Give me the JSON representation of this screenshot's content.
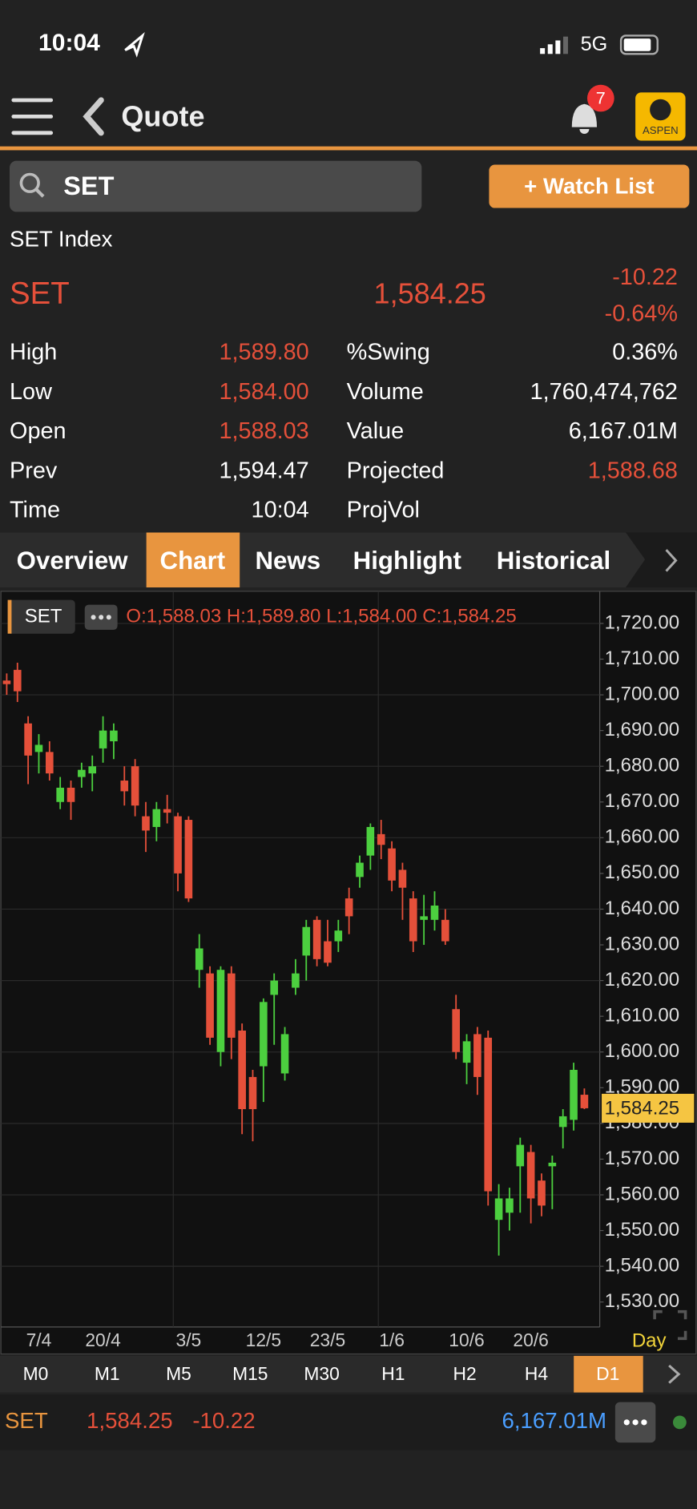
{
  "status_bar": {
    "time": "10:04",
    "network": "5G"
  },
  "header": {
    "title": "Quote",
    "notifications": "7",
    "logo": "ASPEN"
  },
  "search": {
    "query": "SET",
    "button": "+ Watch List"
  },
  "quote": {
    "name": "SET Index",
    "symbol": "SET",
    "last": "1,584.25",
    "change": "-10.22",
    "change_pct": "-0.64%",
    "left": [
      {
        "label": "High",
        "value": "1,589.80"
      },
      {
        "label": "Low",
        "value": "1,584.00"
      },
      {
        "label": "Open",
        "value": "1,588.03"
      },
      {
        "label": "Prev",
        "value": "1,594.47"
      },
      {
        "label": "Time",
        "value": "10:04"
      }
    ],
    "right": [
      {
        "label": "%Swing",
        "value": "0.36%"
      },
      {
        "label": "Volume",
        "value": "1,760,474,762"
      },
      {
        "label": "Value",
        "value": "6,167.01M"
      },
      {
        "label": "Projected",
        "value": "1,588.68"
      },
      {
        "label": "ProjVol"
      }
    ]
  },
  "tabs": [
    "Overview",
    "Chart",
    "News",
    "Highlight",
    "Historical"
  ],
  "chart_data": {
    "type": "candlestick",
    "symbol": "SET",
    "ohlc_text": "O:1,588.03 H:1,589.80 L:1,584.00 C:1,584.25",
    "period": "Day",
    "up_color": "#4ccf3f",
    "down_color": "#e5503a",
    "categories": [
      null,
      null,
      null,
      "7/4",
      null,
      null,
      null,
      null,
      null,
      "20/4",
      null,
      null,
      null,
      null,
      null,
      null,
      null,
      "3/5",
      null,
      null,
      null,
      null,
      null,
      null,
      "12/5",
      null,
      null,
      null,
      null,
      null,
      "23/5",
      null,
      null,
      null,
      null,
      null,
      "1/6",
      null,
      null,
      null,
      null,
      null,
      null,
      "10/6",
      null,
      null,
      null,
      null,
      null,
      "20/6",
      null,
      null,
      null,
      null,
      null
    ],
    "open": [
      1704,
      1707,
      1692,
      1684,
      1684,
      1670,
      1674,
      1677,
      1678,
      1685,
      1687,
      1676,
      1680,
      1666,
      1663,
      1668,
      1666,
      1665,
      1623,
      1622,
      1600,
      1622,
      1606,
      1593,
      1596,
      1616,
      1594,
      1618,
      1627,
      1637,
      1631,
      1631,
      1643,
      1649,
      1655,
      1661,
      1657,
      1651,
      1643,
      1637,
      1637,
      1637,
      1612,
      1597,
      1605,
      1604,
      1553,
      1555,
      1568,
      1572,
      1564,
      1568,
      1579,
      1581,
      1588.03
    ],
    "high": [
      1706,
      1709,
      1694,
      1689,
      1687,
      1677,
      1676,
      1681,
      1683,
      1694,
      1692,
      1680,
      1682,
      1670,
      1670,
      1672,
      1667,
      1666,
      1633,
      1624,
      1624,
      1624,
      1608,
      1595,
      1615,
      1622,
      1607,
      1626,
      1637,
      1638,
      1637,
      1637,
      1646,
      1655,
      1664,
      1665,
      1659,
      1653,
      1645,
      1644,
      1645,
      1640,
      1616,
      1605,
      1607,
      1606,
      1563,
      1562,
      1576,
      1574,
      1566,
      1571,
      1584,
      1597,
      1589.8
    ],
    "low": [
      1700,
      1698,
      1675,
      1678,
      1676,
      1668,
      1665,
      1674,
      1673,
      1681,
      1682,
      1669,
      1666,
      1656,
      1659,
      1664,
      1645,
      1642,
      1618,
      1602,
      1596,
      1598,
      1577,
      1575,
      1586,
      1602,
      1592,
      1616,
      1620,
      1624,
      1624,
      1628,
      1633,
      1646,
      1651,
      1654,
      1645,
      1637,
      1628,
      1630,
      1634,
      1630,
      1598,
      1591,
      1588,
      1557,
      1543,
      1550,
      1555,
      1552,
      1554,
      1556,
      1573,
      1578,
      1584
    ],
    "close": [
      1703,
      1701,
      1683,
      1686,
      1678,
      1674,
      1670,
      1679,
      1680,
      1690,
      1690,
      1673,
      1669,
      1662,
      1668,
      1667,
      1650,
      1643,
      1629,
      1604,
      1623,
      1604,
      1584,
      1584,
      1614,
      1620,
      1605,
      1622,
      1635,
      1626,
      1625,
      1634,
      1638,
      1653,
      1663,
      1658,
      1648,
      1646,
      1631,
      1638,
      1641,
      1631,
      1600,
      1603,
      1593,
      1561,
      1559,
      1559,
      1574,
      1559,
      1557,
      1569,
      1582,
      1595,
      1584.25
    ],
    "ylim": [
      1523,
      1729
    ],
    "yticks": [
      {
        "value": 1530,
        "label": "1,530.00"
      },
      {
        "value": 1540,
        "label": "1,540.00"
      },
      {
        "value": 1550,
        "label": "1,550.00"
      },
      {
        "value": 1560,
        "label": "1,560.00"
      },
      {
        "value": 1570,
        "label": "1,570.00"
      },
      {
        "value": 1580,
        "label": "1,580.00"
      },
      {
        "value": 1590,
        "label": "1,590.00"
      },
      {
        "value": 1600,
        "label": "1,600.00"
      },
      {
        "value": 1610,
        "label": "1,610.00"
      },
      {
        "value": 1620,
        "label": "1,620.00"
      },
      {
        "value": 1630,
        "label": "1,630.00"
      },
      {
        "value": 1640,
        "label": "1,640.00"
      },
      {
        "value": 1650,
        "label": "1,650.00"
      },
      {
        "value": 1660,
        "label": "1,660.00"
      },
      {
        "value": 1670,
        "label": "1,670.00"
      },
      {
        "value": 1680,
        "label": "1,680.00"
      },
      {
        "value": 1690,
        "label": "1,690.00"
      },
      {
        "value": 1700,
        "label": "1,700.00"
      },
      {
        "value": 1710,
        "label": "1,710.00"
      },
      {
        "value": 1720,
        "label": "1,720.00"
      }
    ],
    "last_price": {
      "value": 1584.25,
      "label": "1,584.25"
    }
  },
  "timeframes": [
    "M0",
    "M1",
    "M5",
    "M15",
    "M30",
    "H1",
    "H2",
    "H4",
    "D1"
  ],
  "footer": {
    "symbol": "SET",
    "last": "1,584.25",
    "change": "-10.22",
    "value": "6,167.01M"
  }
}
